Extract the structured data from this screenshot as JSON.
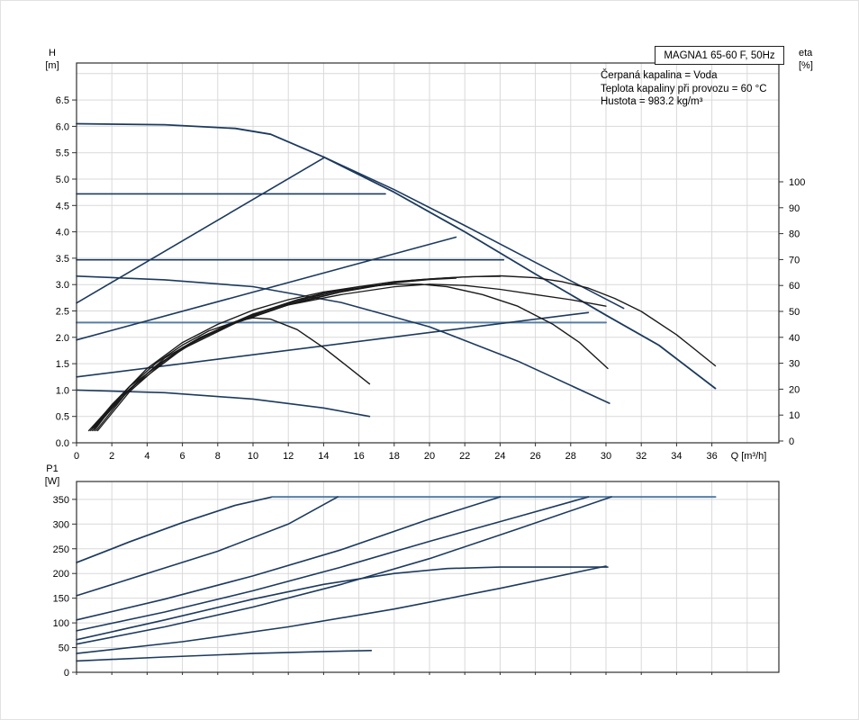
{
  "page": {
    "bg": "#ffffff"
  },
  "title_box": {
    "label": "MAGNA1 65-60 F, 50Hz"
  },
  "annotations": [
    "Čerpaná kapalina = Voda",
    "Teplota kapaliny při provozu = 60 °C",
    "Hustota = 983.2 kg/m³"
  ],
  "colors": {
    "curve_navy": "#1c3a5e",
    "curve_light_blue": "#567fa6",
    "curve_black": "#1a1a1a",
    "grid": "#d9d9d9",
    "frame": "#2f2f2f",
    "text": "#000000"
  },
  "chart_data": [
    {
      "name": "hq-performance",
      "type": "line",
      "x_label": "Q [m³/h]",
      "x_ticks": [
        0,
        2,
        4,
        6,
        8,
        10,
        12,
        14,
        16,
        18,
        20,
        22,
        24,
        26,
        28,
        30,
        32,
        34,
        36
      ],
      "xlim": [
        0,
        39.8
      ],
      "y_left_label": [
        "H",
        "[m]"
      ],
      "y_left_ticks": [
        "0.0",
        "0.5",
        "1.0",
        "1.5",
        "2.0",
        "2.5",
        "3.0",
        "3.5",
        "4.0",
        "4.5",
        "5.0",
        "5.5",
        "6.0",
        "6.5"
      ],
      "ylim_left": [
        0,
        7.2
      ],
      "y_right_label": [
        "eta",
        "[%]"
      ],
      "y_right_ticks": [
        0,
        10,
        20,
        30,
        40,
        50,
        60,
        70,
        80,
        90,
        100
      ],
      "ylim_right": [
        0,
        145
      ],
      "grid": true,
      "legend": "none",
      "series": [
        {
          "name": "max-speed-curve",
          "axis": "H",
          "color": "#1c3a5e",
          "width": 1.8,
          "points": [
            [
              0,
              6.05
            ],
            [
              5,
              6.03
            ],
            [
              9,
              5.96
            ],
            [
              11,
              5.85
            ],
            [
              14,
              5.42
            ],
            [
              18,
              4.75
            ],
            [
              22,
              4.0
            ],
            [
              26,
              3.2
            ],
            [
              30,
              2.42
            ],
            [
              33,
              1.85
            ],
            [
              36.2,
              1.03
            ]
          ]
        },
        {
          "name": "envelope-right-curve",
          "axis": "H",
          "color": "#1c3a5e",
          "width": 1.6,
          "points": [
            [
              14,
              5.42
            ],
            [
              18,
              4.8
            ],
            [
              22,
              4.12
            ],
            [
              26,
              3.42
            ],
            [
              31,
              2.55
            ]
          ]
        },
        {
          "name": "const-pressure-1",
          "axis": "H",
          "color": "#1c3a5e",
          "width": 1.6,
          "points": [
            [
              0,
              4.72
            ],
            [
              17.5,
              4.72
            ]
          ]
        },
        {
          "name": "const-pressure-2",
          "axis": "H",
          "color": "#1c3a5e",
          "width": 1.6,
          "points": [
            [
              0,
              3.47
            ],
            [
              24.2,
              3.47
            ]
          ]
        },
        {
          "name": "const-pressure-3",
          "axis": "H",
          "color": "#567fa6",
          "width": 2,
          "points": [
            [
              0,
              2.28
            ],
            [
              30,
              2.28
            ]
          ]
        },
        {
          "name": "prop-pressure-1",
          "axis": "H",
          "color": "#1c3a5e",
          "width": 1.6,
          "points": [
            [
              0,
              2.65
            ],
            [
              14,
              5.4
            ]
          ]
        },
        {
          "name": "prop-pressure-2",
          "axis": "H",
          "color": "#1c3a5e",
          "width": 1.6,
          "points": [
            [
              0,
              1.95
            ],
            [
              21.5,
              3.9
            ]
          ]
        },
        {
          "name": "prop-pressure-3",
          "axis": "H",
          "color": "#1c3a5e",
          "width": 1.6,
          "points": [
            [
              0,
              1.25
            ],
            [
              29,
              2.47
            ]
          ]
        },
        {
          "name": "speed-iii-curve",
          "axis": "H",
          "color": "#1c3a5e",
          "width": 1.6,
          "points": [
            [
              0,
              3.16
            ],
            [
              5,
              3.09
            ],
            [
              10,
              2.96
            ],
            [
              15,
              2.66
            ],
            [
              20,
              2.2
            ],
            [
              25,
              1.55
            ],
            [
              30.2,
              0.75
            ]
          ]
        },
        {
          "name": "min-speed-curve",
          "axis": "H",
          "color": "#1c3a5e",
          "width": 1.6,
          "points": [
            [
              0,
              1.0
            ],
            [
              5,
              0.95
            ],
            [
              10,
              0.83
            ],
            [
              14,
              0.66
            ],
            [
              16.6,
              0.5
            ]
          ]
        },
        {
          "name": "eta-max",
          "axis": "eta",
          "color": "#1a1a1a",
          "width": 1.4,
          "points": [
            [
              1.0,
              4
            ],
            [
              2,
              13
            ],
            [
              4,
              26
            ],
            [
              6,
              36
            ],
            [
              8,
              43
            ],
            [
              10,
              49
            ],
            [
              12,
              53
            ],
            [
              14,
              57
            ],
            [
              16,
              59.5
            ],
            [
              18,
              61.5
            ],
            [
              20,
              62.5
            ],
            [
              22,
              63.3
            ],
            [
              24,
              63.7
            ],
            [
              26,
              63
            ],
            [
              27.5,
              61.5
            ],
            [
              29,
              59
            ],
            [
              30.5,
              55
            ],
            [
              32,
              50
            ],
            [
              34,
              41
            ],
            [
              36.2,
              29
            ]
          ]
        },
        {
          "name": "eta-speed-iii",
          "axis": "eta",
          "color": "#1a1a1a",
          "width": 1.4,
          "points": [
            [
              0.9,
              5
            ],
            [
              2,
              14
            ],
            [
              4,
              28
            ],
            [
              6,
              38
            ],
            [
              8,
              45
            ],
            [
              10,
              50.5
            ],
            [
              12,
              54.5
            ],
            [
              14,
              57.5
            ],
            [
              16,
              59.5
            ],
            [
              18,
              60.5
            ],
            [
              19.5,
              60.5
            ],
            [
              21,
              59.5
            ],
            [
              23,
              56.5
            ],
            [
              25,
              52
            ],
            [
              27,
              45
            ],
            [
              28.5,
              38
            ],
            [
              30.1,
              28
            ]
          ]
        },
        {
          "name": "eta-min",
          "axis": "eta",
          "color": "#1a1a1a",
          "width": 1.4,
          "points": [
            [
              0.7,
              4
            ],
            [
              1.5,
              10
            ],
            [
              3,
              21
            ],
            [
              4.5,
              30
            ],
            [
              6,
              37
            ],
            [
              7.5,
              42.5
            ],
            [
              9,
              46
            ],
            [
              10,
              47.5
            ],
            [
              11,
              47
            ],
            [
              12.5,
              43
            ],
            [
              14,
              36
            ],
            [
              15.5,
              28
            ],
            [
              16.6,
              22
            ]
          ]
        },
        {
          "name": "eta-const-pressure-1",
          "axis": "eta",
          "color": "#1a1a1a",
          "width": 1.3,
          "points": [
            [
              1.1,
              4
            ],
            [
              3,
              20
            ],
            [
              5,
              32
            ],
            [
              7,
              40
            ],
            [
              9,
              46
            ],
            [
              11,
              51
            ],
            [
              13,
              55
            ],
            [
              15,
              58
            ],
            [
              16.5,
              59.5
            ],
            [
              17.5,
              60.2
            ]
          ]
        },
        {
          "name": "eta-const-pressure-2",
          "axis": "eta",
          "color": "#1a1a1a",
          "width": 1.3,
          "points": [
            [
              1.2,
              4
            ],
            [
              3,
              19
            ],
            [
              5,
              31
            ],
            [
              7,
              39.5
            ],
            [
              9,
              45.5
            ],
            [
              11,
              50.5
            ],
            [
              13,
              54.5
            ],
            [
              15,
              57.5
            ],
            [
              17,
              60
            ],
            [
              19,
              62
            ],
            [
              21,
              63
            ],
            [
              22.5,
              63.4
            ],
            [
              24,
              63.5
            ]
          ]
        },
        {
          "name": "eta-const-pressure-3",
          "axis": "eta",
          "color": "#1a1a1a",
          "width": 1.3,
          "points": [
            [
              1.0,
              5
            ],
            [
              3,
              21
            ],
            [
              6,
              36
            ],
            [
              9,
              46
            ],
            [
              12,
              52.5
            ],
            [
              15,
              56.5
            ],
            [
              18,
              59.5
            ],
            [
              20,
              60.5
            ],
            [
              22,
              60
            ],
            [
              24,
              58.5
            ],
            [
              26,
              56.5
            ],
            [
              28,
              54.5
            ],
            [
              30,
              52
            ]
          ]
        },
        {
          "name": "eta-prop-pressure-1",
          "axis": "eta",
          "color": "#1a1a1a",
          "width": 1.3,
          "points": [
            [
              0.8,
              4
            ],
            [
              2.5,
              17
            ],
            [
              4.5,
              29
            ],
            [
              6.5,
              38
            ],
            [
              8.5,
              44.5
            ],
            [
              10.5,
              50
            ],
            [
              12.5,
              54.5
            ],
            [
              14,
              57
            ]
          ]
        },
        {
          "name": "eta-prop-pressure-2",
          "axis": "eta",
          "color": "#1a1a1a",
          "width": 1.3,
          "points": [
            [
              0.9,
              4
            ],
            [
              3,
              20
            ],
            [
              6,
              35.5
            ],
            [
              9,
              45.5
            ],
            [
              12,
              52.5
            ],
            [
              15,
              57.5
            ],
            [
              18,
              61
            ],
            [
              20,
              62.3
            ],
            [
              21.5,
              62.8
            ]
          ]
        }
      ]
    },
    {
      "name": "p1-power",
      "type": "line",
      "x_label": null,
      "x_ticks": [
        0,
        2,
        4,
        6,
        8,
        10,
        12,
        14,
        16,
        18,
        20,
        22,
        24,
        26,
        28,
        30,
        32,
        34,
        36
      ],
      "xlim": [
        0,
        39.8
      ],
      "y_left_label": [
        "P1",
        "[W]"
      ],
      "y_left_ticks": [
        0,
        50,
        100,
        150,
        200,
        250,
        300,
        350
      ],
      "ylim_left": [
        0,
        386
      ],
      "grid": true,
      "legend": "none",
      "series": [
        {
          "name": "p1-max",
          "axis": "W",
          "color": "#1c3a5e",
          "width": 1.7,
          "points": [
            [
              0,
              222
            ],
            [
              3,
              264
            ],
            [
              6,
              303
            ],
            [
              9,
              338
            ],
            [
              11.1,
              355
            ]
          ]
        },
        {
          "name": "p1-power-limit",
          "axis": "W",
          "color": "#567fa6",
          "width": 2,
          "points": [
            [
              11.1,
              355
            ],
            [
              36.2,
              355
            ]
          ]
        },
        {
          "name": "p1-curve-2",
          "axis": "W",
          "color": "#1c3a5e",
          "width": 1.6,
          "points": [
            [
              0,
              155
            ],
            [
              4,
              200
            ],
            [
              8,
              245
            ],
            [
              12,
              300
            ],
            [
              14.8,
              355
            ]
          ]
        },
        {
          "name": "p1-curve-3",
          "axis": "W",
          "color": "#1c3a5e",
          "width": 1.6,
          "points": [
            [
              0,
              106
            ],
            [
              5,
              148
            ],
            [
              10,
              195
            ],
            [
              15,
              248
            ],
            [
              20,
              310
            ],
            [
              24,
              355
            ]
          ]
        },
        {
          "name": "p1-curve-4",
          "axis": "W",
          "color": "#1c3a5e",
          "width": 1.6,
          "points": [
            [
              0,
              84
            ],
            [
              5,
              122
            ],
            [
              10,
              165
            ],
            [
              15,
              213
            ],
            [
              20,
              265
            ],
            [
              25,
              315
            ],
            [
              29,
              355
            ]
          ]
        },
        {
          "name": "p1-const-pressure",
          "axis": "W",
          "color": "#1c3a5e",
          "width": 1.6,
          "points": [
            [
              0,
              66
            ],
            [
              5,
              106
            ],
            [
              10,
              148
            ],
            [
              14,
              178
            ],
            [
              18,
              200
            ],
            [
              21,
              210
            ],
            [
              24,
              213
            ],
            [
              30.1,
              213
            ]
          ]
        },
        {
          "name": "p1-curve-6",
          "axis": "W",
          "color": "#1c3a5e",
          "width": 1.6,
          "points": [
            [
              0,
              57
            ],
            [
              5,
              92
            ],
            [
              10,
              132
            ],
            [
              15,
              178
            ],
            [
              20,
              230
            ],
            [
              25,
              290
            ],
            [
              30.3,
              355
            ]
          ]
        },
        {
          "name": "p1-curve-7",
          "axis": "W",
          "color": "#1c3a5e",
          "width": 1.6,
          "points": [
            [
              0,
              38
            ],
            [
              6,
              62
            ],
            [
              12,
              92
            ],
            [
              18,
              128
            ],
            [
              24,
              170
            ],
            [
              30,
              215
            ]
          ]
        },
        {
          "name": "p1-min",
          "axis": "W",
          "color": "#1c3a5e",
          "width": 1.6,
          "points": [
            [
              0,
              23
            ],
            [
              5,
              31
            ],
            [
              10,
              38
            ],
            [
              14,
              42
            ],
            [
              16.7,
              44
            ]
          ]
        }
      ]
    }
  ]
}
